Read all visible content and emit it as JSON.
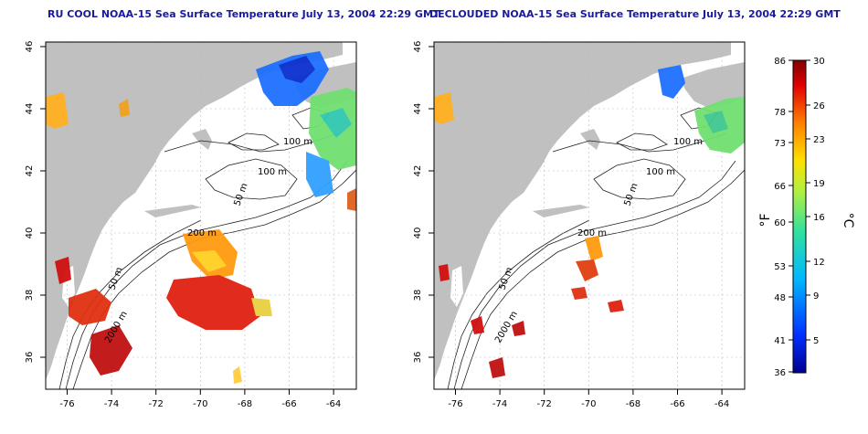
{
  "panels": [
    {
      "title": "RU COOL NOAA-15 Sea Surface Temperature July 13, 2004 22:29 GMT",
      "x_ticks": [
        "-76",
        "-74",
        "-72",
        "-70",
        "-68",
        "-66",
        "-64"
      ],
      "y_ticks": [
        "36",
        "38",
        "40",
        "42",
        "44",
        "46"
      ],
      "contour_labels": [
        "100 m",
        "100 m",
        "50 m",
        "200 m",
        "50 m",
        "2000 m"
      ]
    },
    {
      "title": "DECLOUDED NOAA-15 Sea Surface Temperature July 13, 2004 22:29 GMT",
      "x_ticks": [
        "-76",
        "-74",
        "-72",
        "-70",
        "-68",
        "-66",
        "-64"
      ],
      "y_ticks": [
        "36",
        "38",
        "40",
        "42",
        "44",
        "46"
      ],
      "contour_labels": [
        "100 m",
        "100 m",
        "50 m",
        "200 m",
        "50 m",
        "2000 m"
      ]
    }
  ],
  "colorbar": {
    "f_ticks": [
      "86",
      "78",
      "73",
      "66",
      "60",
      "53",
      "48",
      "41",
      "36"
    ],
    "c_ticks": [
      "30",
      "26",
      "23",
      "19",
      "16",
      "12",
      "9",
      "5"
    ],
    "f_label": "°F",
    "c_label": "°C"
  },
  "colors": {
    "land": "#c0c0c0",
    "title": "#1a1a9c",
    "cold": "#0000a0",
    "hot": "#800000"
  }
}
